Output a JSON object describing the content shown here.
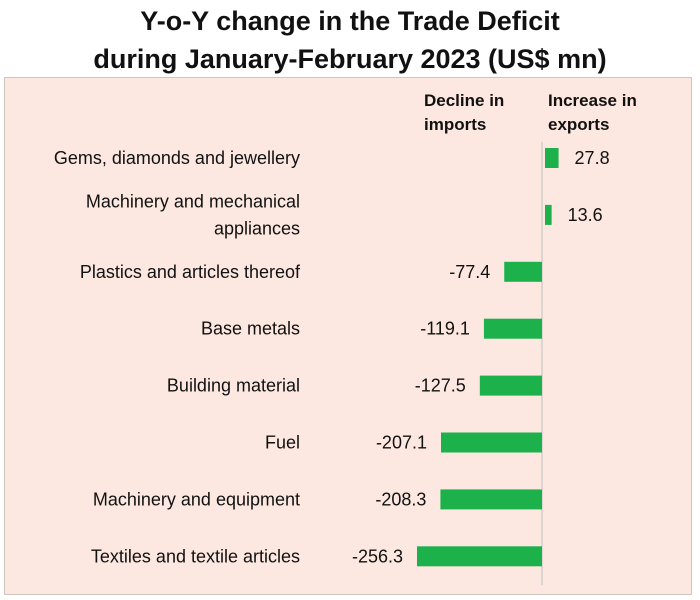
{
  "title": {
    "line1": "Y-o-Y change in the Trade Deficit",
    "line2": "during January-February 2023 (US$ mn)"
  },
  "legend": {
    "negative_line1": "Decline in",
    "negative_line2": "imports",
    "positive_line1": "Increase in",
    "positive_line2": "exports"
  },
  "colors": {
    "bar": "#1db14b",
    "plot_background": "#fce8e0",
    "axis": "#bfbfbf"
  },
  "chart_data": {
    "type": "bar",
    "orientation": "horizontal",
    "categories": [
      [
        "Gems, diamonds and jewellery"
      ],
      [
        "Machinery and mechanical",
        "appliances"
      ],
      [
        "Plastics  and articles thereof"
      ],
      [
        "Base metals"
      ],
      [
        "Building material "
      ],
      [
        "Fuel"
      ],
      [
        "Machinery and equipment"
      ],
      [
        "Textiles and textile articles"
      ]
    ],
    "values": [
      27.8,
      13.6,
      -77.4,
      -119.1,
      -127.5,
      -207.1,
      -208.3,
      -256.3
    ],
    "value_labels": [
      "27.8",
      "13.6",
      "-77.4",
      "-119.1",
      "-127.5",
      "-207.1",
      "-208.3",
      "-256.3"
    ],
    "title": "Y-o-Y change in the Trade Deficit during January-February 2023 (US$ mn)",
    "xlabel": "",
    "ylabel": "",
    "xlim": [
      -256.3,
      27.8
    ],
    "grid": false,
    "legend": "top"
  }
}
